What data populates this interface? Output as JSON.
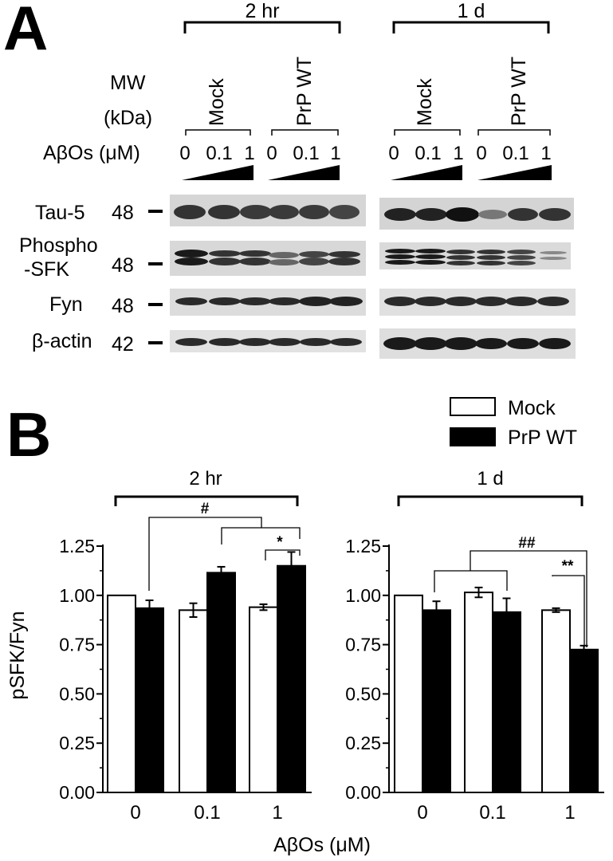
{
  "panel_a": {
    "letter": "A",
    "groups": [
      {
        "time": "2 hr",
        "conditions": [
          {
            "label": "Mock",
            "doses": [
              "0",
              "0.1",
              "1"
            ]
          },
          {
            "label": "PrP WT",
            "doses": [
              "0",
              "0.1",
              "1"
            ]
          }
        ]
      },
      {
        "time": "1 d",
        "conditions": [
          {
            "label": "Mock",
            "doses": [
              "0",
              "0.1",
              "1"
            ]
          },
          {
            "label": "PrP WT",
            "doses": [
              "0",
              "0.1",
              "1"
            ]
          }
        ]
      }
    ],
    "mw_label_line1": "MW",
    "mw_label_line2": "(kDa)",
    "abos_label": "AβOs (μM)",
    "blots": [
      {
        "name_lines": [
          "Tau-5"
        ],
        "mw": "48"
      },
      {
        "name_lines": [
          "Phospho",
          "-SFK"
        ],
        "mw": "48"
      },
      {
        "name_lines": [
          "Fyn"
        ],
        "mw": "48"
      },
      {
        "name_lines": [
          "β-actin"
        ],
        "mw": "42"
      }
    ]
  },
  "panel_b": {
    "letter": "B",
    "legend": [
      "Mock",
      "PrP WT"
    ],
    "colors": {
      "mock": "#ffffff",
      "prp": "#000000",
      "stroke": "#000000"
    }
  },
  "chart_data": [
    {
      "type": "bar",
      "title": "2 hr",
      "categories": [
        "0",
        "0.1",
        "1"
      ],
      "series": [
        {
          "name": "Mock",
          "values": [
            1.0,
            0.925,
            0.94
          ],
          "errors": [
            0,
            0.035,
            0.015
          ]
        },
        {
          "name": "PrP WT",
          "values": [
            0.935,
            1.115,
            1.15
          ],
          "errors": [
            0.04,
            0.03,
            0.07
          ]
        }
      ],
      "ylabel": "pSFK/Fyn",
      "xlabel": "AβOs (μM)",
      "ylim": [
        0,
        1.25
      ],
      "yticks": [
        "0.00",
        "0.25",
        "0.50",
        "0.75",
        "1.00",
        "1.25"
      ],
      "annotations": [
        "#",
        "*"
      ]
    },
    {
      "type": "bar",
      "title": "1 d",
      "categories": [
        "0",
        "0.1",
        "1"
      ],
      "series": [
        {
          "name": "Mock",
          "values": [
            1.0,
            1.015,
            0.925
          ],
          "errors": [
            0,
            0.025,
            0.01
          ]
        },
        {
          "name": "PrP WT",
          "values": [
            0.925,
            0.915,
            0.725
          ],
          "errors": [
            0.045,
            0.07,
            0.02
          ]
        }
      ],
      "xlabel": "AβOs (μM)",
      "ylim": [
        0,
        1.25
      ],
      "yticks": [
        "0.00",
        "0.25",
        "0.50",
        "0.75",
        "1.00",
        "1.25"
      ],
      "annotations": [
        "##",
        "**"
      ]
    }
  ]
}
